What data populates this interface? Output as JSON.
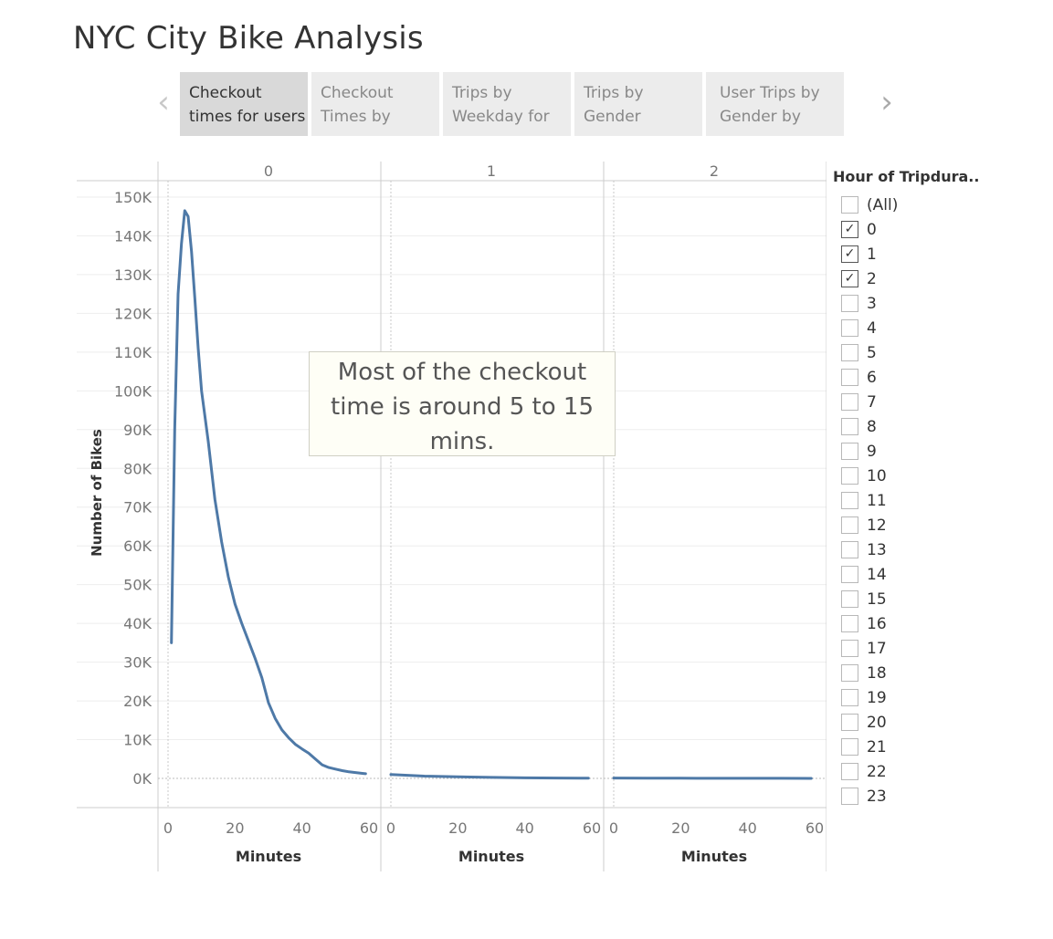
{
  "page": {
    "title": "NYC City Bike Analysis"
  },
  "story": {
    "prev_icon": "chevron-left-icon",
    "next_icon": "chevron-right-icon",
    "tabs": [
      {
        "line1": "Checkout",
        "line2": "times for users",
        "active": true
      },
      {
        "line1": "Checkout",
        "line2": "Times by",
        "active": false
      },
      {
        "line1": "Trips by",
        "line2": "Weekday for",
        "active": false
      },
      {
        "line1": "Trips by",
        "line2": "Gender",
        "active": false
      },
      {
        "line1": "User Trips by",
        "line2": "Gender by",
        "active": false
      }
    ]
  },
  "annotation": {
    "text": "Most of the checkout time is around 5 to 15 mins."
  },
  "filter": {
    "title": "Hour of Tripdura..",
    "items": [
      {
        "label": "(All)",
        "checked": false
      },
      {
        "label": "0",
        "checked": true
      },
      {
        "label": "1",
        "checked": true
      },
      {
        "label": "2",
        "checked": true
      },
      {
        "label": "3",
        "checked": false
      },
      {
        "label": "4",
        "checked": false
      },
      {
        "label": "5",
        "checked": false
      },
      {
        "label": "6",
        "checked": false
      },
      {
        "label": "7",
        "checked": false
      },
      {
        "label": "8",
        "checked": false
      },
      {
        "label": "9",
        "checked": false
      },
      {
        "label": "10",
        "checked": false
      },
      {
        "label": "11",
        "checked": false
      },
      {
        "label": "12",
        "checked": false
      },
      {
        "label": "13",
        "checked": false
      },
      {
        "label": "14",
        "checked": false
      },
      {
        "label": "15",
        "checked": false
      },
      {
        "label": "16",
        "checked": false
      },
      {
        "label": "17",
        "checked": false
      },
      {
        "label": "18",
        "checked": false
      },
      {
        "label": "19",
        "checked": false
      },
      {
        "label": "20",
        "checked": false
      },
      {
        "label": "21",
        "checked": false
      },
      {
        "label": "22",
        "checked": false
      },
      {
        "label": "23",
        "checked": false
      }
    ]
  },
  "colors": {
    "line": "#4e79a7",
    "grid": "#eeeeee",
    "axis": "#cccccc",
    "text": "#777777"
  },
  "chart_data": {
    "type": "line",
    "ylabel": "Number of Bikes",
    "ylim": [
      0,
      150000
    ],
    "yticks": [
      0,
      10000,
      20000,
      30000,
      40000,
      50000,
      60000,
      70000,
      80000,
      90000,
      100000,
      110000,
      120000,
      130000,
      140000,
      150000
    ],
    "ytick_labels": [
      "0K",
      "10K",
      "20K",
      "30K",
      "40K",
      "50K",
      "60K",
      "70K",
      "80K",
      "90K",
      "100K",
      "110K",
      "120K",
      "130K",
      "140K",
      "150K"
    ],
    "xlim": [
      0,
      60
    ],
    "xticks": [
      0,
      20,
      40,
      60
    ],
    "xtick_labels": [
      "0",
      "20",
      "40",
      "60"
    ],
    "grid": true,
    "panels": [
      {
        "header": "0",
        "xlabel": "Minutes",
        "x": [
          1,
          2,
          3,
          4,
          5,
          6,
          7,
          8,
          9,
          10,
          12,
          14,
          16,
          18,
          20,
          22,
          24,
          26,
          28,
          30,
          32,
          34,
          36,
          38,
          40,
          42,
          44,
          46,
          48,
          50,
          52,
          54,
          56,
          58,
          59
        ],
        "y": [
          35000,
          90000,
          125000,
          138000,
          146500,
          145000,
          136000,
          124000,
          111000,
          100000,
          87000,
          72000,
          61000,
          52000,
          45000,
          40000,
          35500,
          31000,
          26000,
          19500,
          15500,
          12500,
          10500,
          8800,
          7600,
          6500,
          5000,
          3500,
          2800,
          2400,
          2000,
          1700,
          1500,
          1300,
          1200
        ]
      },
      {
        "header": "1",
        "xlabel": "Minutes",
        "x": [
          0,
          5,
          10,
          20,
          30,
          40,
          50,
          59
        ],
        "y": [
          1000,
          800,
          600,
          400,
          250,
          150,
          100,
          50
        ]
      },
      {
        "header": "2",
        "xlabel": "Minutes",
        "x": [
          0,
          10,
          20,
          30,
          40,
          50,
          59
        ],
        "y": [
          100,
          60,
          40,
          30,
          20,
          15,
          10
        ]
      }
    ]
  }
}
